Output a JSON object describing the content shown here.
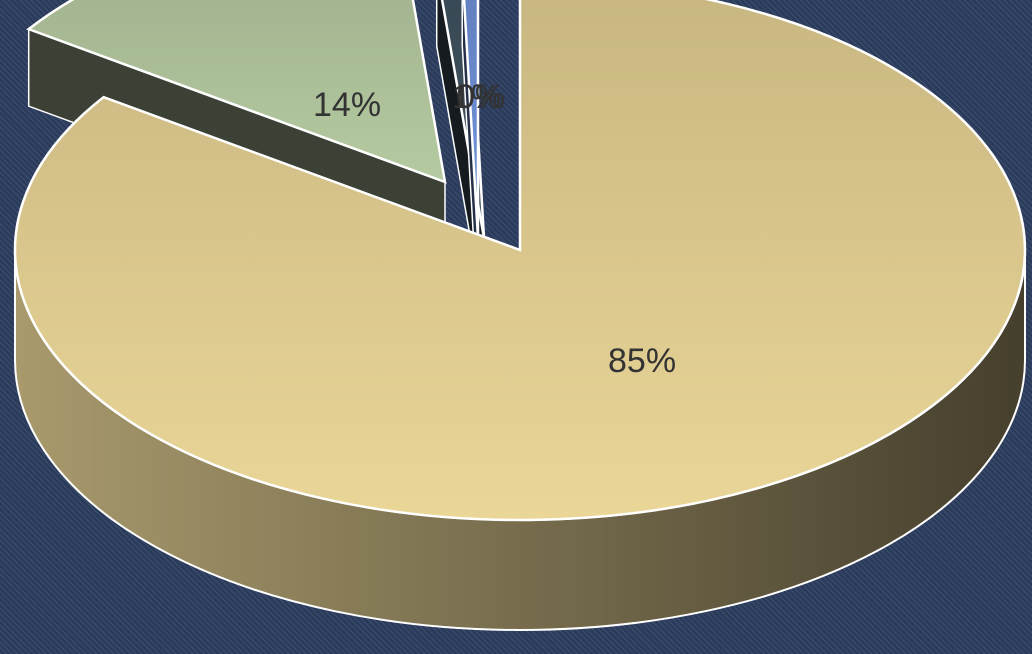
{
  "chart_data": {
    "type": "pie",
    "style": "3d-exploded",
    "title": "",
    "legend": "none",
    "slices": [
      {
        "label": "85%",
        "value": 85,
        "color": "#d9c68c"
      },
      {
        "label": "14%",
        "value": 14,
        "color": "#a8bb95"
      },
      {
        "label": "1%",
        "value": 1,
        "color": "#3c4e5a"
      },
      {
        "label": "0%",
        "value": 0.5,
        "color": "#6a8acd"
      }
    ]
  }
}
